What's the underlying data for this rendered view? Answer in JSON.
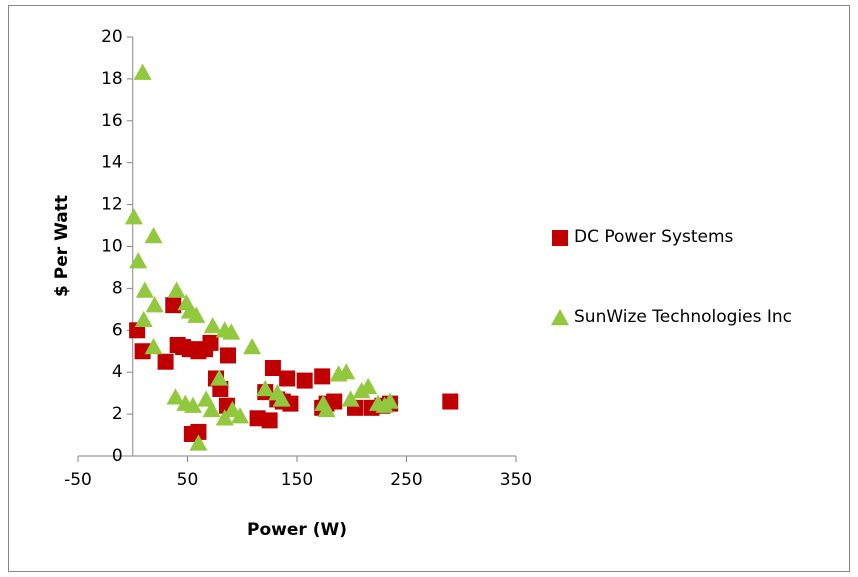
{
  "chart_data": {
    "type": "scatter",
    "x_label": "Power (W)",
    "y_label": "$ Per Watt",
    "xlim": [
      -50,
      350
    ],
    "xticks": [
      -50,
      50,
      150,
      250,
      350
    ],
    "ylim": [
      0,
      20
    ],
    "yticks": [
      0,
      2,
      4,
      6,
      8,
      10,
      12,
      14,
      16,
      18,
      20
    ],
    "legend": "right",
    "series": [
      {
        "name": "DC Power Systems",
        "color": "#c00000",
        "marker": "square",
        "x": [
          4,
          9,
          30,
          37,
          41,
          46,
          52,
          60,
          66,
          71,
          76,
          80,
          86,
          87,
          54,
          60,
          114,
          121,
          128,
          125,
          132,
          137,
          141,
          144,
          157,
          173,
          177,
          173,
          184,
          203,
          218,
          228,
          235,
          290
        ],
        "values": [
          6.0,
          5.0,
          4.5,
          7.2,
          5.3,
          5.2,
          5.1,
          5.0,
          5.1,
          5.4,
          3.7,
          3.2,
          2.4,
          4.8,
          1.05,
          1.15,
          1.8,
          3.05,
          4.2,
          1.7,
          2.7,
          2.6,
          3.7,
          2.5,
          3.6,
          3.8,
          2.5,
          2.3,
          2.6,
          2.3,
          2.3,
          2.4,
          2.5,
          2.6
        ]
      },
      {
        "name": "SunWize Technologies Inc",
        "color": "#92c83e",
        "marker": "triangle",
        "x": [
          9,
          1,
          5,
          19,
          11,
          10,
          19,
          20,
          40,
          49,
          52,
          58,
          73,
          84,
          90,
          109,
          39,
          48,
          55,
          60,
          67,
          72,
          79,
          84,
          91,
          98,
          121,
          132,
          136,
          174,
          177,
          188,
          195,
          199,
          209,
          215,
          224,
          230,
          235
        ],
        "values": [
          18.3,
          11.4,
          9.3,
          10.5,
          7.9,
          6.5,
          5.2,
          7.2,
          7.9,
          7.3,
          6.9,
          6.7,
          6.2,
          6.0,
          5.9,
          5.2,
          2.8,
          2.5,
          2.4,
          0.6,
          2.7,
          2.2,
          3.7,
          1.8,
          2.2,
          1.9,
          3.2,
          3.0,
          2.7,
          2.5,
          2.2,
          3.9,
          4.0,
          2.7,
          3.1,
          3.3,
          2.5,
          2.4,
          2.6
        ]
      }
    ]
  }
}
